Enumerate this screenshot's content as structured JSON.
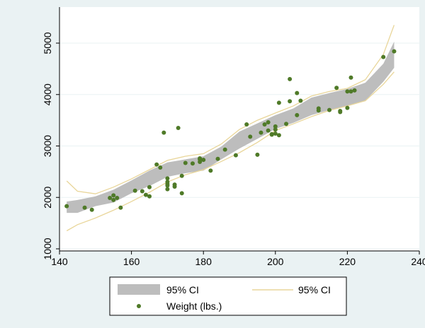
{
  "chart_data": {
    "type": "scatter",
    "xlim": [
      140,
      240
    ],
    "ylim": [
      1000,
      5000
    ],
    "xticks": [
      140,
      160,
      180,
      200,
      220,
      240
    ],
    "yticks": [
      1000,
      2000,
      3000,
      4000,
      5000
    ],
    "xtick_labels": [
      "140",
      "160",
      "180",
      "200",
      "220",
      "240"
    ],
    "ytick_labels": [
      "1000",
      "2000",
      "3000",
      "4000",
      "5000"
    ],
    "grid": "horizontal",
    "legend_position": "bottom",
    "legend": {
      "ci_band": "95% CI",
      "ci_line": "95% CI",
      "points": "Weight (lbs.)"
    },
    "colors": {
      "points": "#4f7a28",
      "band": "#bdbdbd",
      "ci_line": "#e9d69a",
      "background": "#eaf2f3",
      "plot_background": "#ffffff"
    },
    "ci_band": {
      "x": [
        142,
        145,
        150,
        155,
        160,
        165,
        170,
        175,
        180,
        185,
        190,
        195,
        200,
        205,
        210,
        215,
        220,
        225,
        230,
        233
      ],
      "lower": [
        1700,
        1700,
        1830,
        1900,
        2080,
        2220,
        2400,
        2470,
        2520,
        2740,
        2950,
        3140,
        3330,
        3450,
        3600,
        3700,
        3780,
        3880,
        4250,
        4520
      ],
      "upper": [
        1920,
        1950,
        2020,
        2150,
        2330,
        2520,
        2680,
        2740,
        2800,
        2990,
        3280,
        3440,
        3600,
        3730,
        3940,
        4030,
        4110,
        4230,
        4600,
        5030
      ]
    },
    "ci_line": {
      "x": [
        142,
        145,
        150,
        155,
        160,
        165,
        170,
        175,
        180,
        185,
        190,
        195,
        200,
        205,
        210,
        215,
        220,
        225,
        230,
        233
      ],
      "lower": [
        1350,
        1470,
        1600,
        1750,
        1920,
        2100,
        2300,
        2440,
        2540,
        2700,
        2870,
        3070,
        3300,
        3430,
        3570,
        3690,
        3780,
        3880,
        4200,
        4440
      ],
      "upper": [
        2320,
        2120,
        2070,
        2200,
        2360,
        2540,
        2720,
        2800,
        2850,
        3040,
        3320,
        3500,
        3640,
        3780,
        3970,
        4060,
        4120,
        4290,
        4780,
        5350
      ]
    },
    "series": [
      {
        "name": "Weight (lbs.)",
        "x": [
          142,
          147,
          149,
          154,
          155,
          155,
          156,
          157,
          161,
          163,
          164,
          165,
          165,
          167,
          168,
          169,
          170,
          170,
          170,
          170,
          170,
          172,
          172,
          173,
          174,
          174,
          175,
          177,
          179,
          179,
          179,
          180,
          182,
          184,
          186,
          189,
          192,
          193,
          195,
          196,
          197,
          198,
          198,
          199,
          199,
          200,
          200,
          200,
          201,
          201,
          203,
          204,
          204,
          206,
          206,
          207,
          212,
          212,
          215,
          217,
          218,
          218,
          220,
          220,
          221,
          221,
          222,
          230,
          233
        ],
        "y": [
          1830,
          1800,
          1760,
          1990,
          1950,
          2040,
          1990,
          1800,
          2130,
          2120,
          2050,
          2020,
          2200,
          2640,
          2580,
          3260,
          2230,
          2260,
          2300,
          2370,
          2160,
          2210,
          2250,
          3350,
          2080,
          2420,
          2670,
          2660,
          2690,
          2740,
          2760,
          2730,
          2520,
          2750,
          2930,
          2820,
          3420,
          3180,
          2830,
          3260,
          3420,
          3300,
          3460,
          3220,
          3230,
          3320,
          3380,
          3240,
          3210,
          3840,
          3430,
          3870,
          4300,
          3600,
          4030,
          3880,
          3690,
          3730,
          3700,
          4130,
          3680,
          3660,
          3740,
          4060,
          4060,
          4330,
          4080,
          4730,
          4840
        ]
      }
    ]
  }
}
